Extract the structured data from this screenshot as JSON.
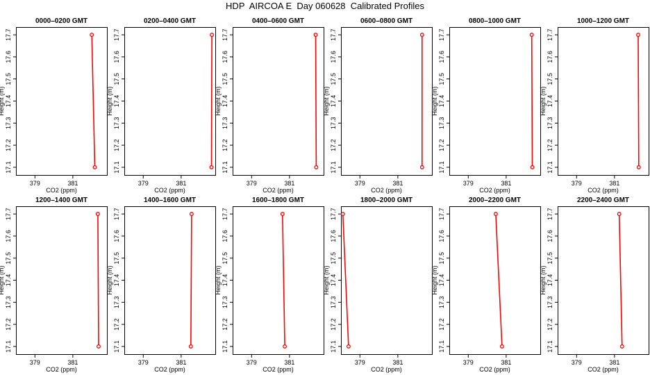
{
  "page": {
    "title": "HDP  AIRCOA E  Day 060628  Calibrated Profiles"
  },
  "colors": {
    "profile": "#ff0000",
    "axis": "#000000",
    "background": "#ffffff"
  },
  "chart_data": [
    {
      "type": "line",
      "title": "0000–0200 GMT",
      "xlabel": "CO2 (ppm)",
      "ylabel": "Height (m)",
      "xlim": [
        378.0,
        382.8
      ],
      "ylim": [
        17.065,
        17.735
      ],
      "x_ticks": [
        "379",
        "381"
      ],
      "y_ticks": [
        "17.1",
        "17.2",
        "17.3",
        "17.4",
        "17.5",
        "17.6",
        "17.7"
      ],
      "x": [
        382.0,
        382.16
      ],
      "y": [
        17.7,
        17.1
      ]
    },
    {
      "type": "line",
      "title": "0200–0400 GMT",
      "xlabel": "CO2 (ppm)",
      "ylabel": "Height (m)",
      "xlim": [
        378.0,
        382.8
      ],
      "ylim": [
        17.065,
        17.735
      ],
      "x_ticks": [
        "379",
        "381"
      ],
      "y_ticks": [
        "17.1",
        "17.2",
        "17.3",
        "17.4",
        "17.5",
        "17.6",
        "17.7"
      ],
      "x": [
        382.62,
        382.6
      ],
      "y": [
        17.7,
        17.1
      ]
    },
    {
      "type": "line",
      "title": "0400–0600 GMT",
      "xlabel": "CO2 (ppm)",
      "ylabel": "Height (m)",
      "xlim": [
        378.0,
        382.8
      ],
      "ylim": [
        17.065,
        17.735
      ],
      "x_ticks": [
        "379",
        "381"
      ],
      "y_ticks": [
        "17.1",
        "17.2",
        "17.3",
        "17.4",
        "17.5",
        "17.6",
        "17.7"
      ],
      "x": [
        382.38,
        382.41
      ],
      "y": [
        17.7,
        17.1
      ]
    },
    {
      "type": "line",
      "title": "0600–0800 GMT",
      "xlabel": "CO2 (ppm)",
      "ylabel": "Height (m)",
      "xlim": [
        378.0,
        382.8
      ],
      "ylim": [
        17.065,
        17.735
      ],
      "x_ticks": [
        "379",
        "381"
      ],
      "y_ticks": [
        "17.1",
        "17.2",
        "17.3",
        "17.4",
        "17.5",
        "17.6",
        "17.7"
      ],
      "x": [
        382.28,
        382.28
      ],
      "y": [
        17.7,
        17.1
      ]
    },
    {
      "type": "line",
      "title": "0800–1000 GMT",
      "xlabel": "CO2 (ppm)",
      "ylabel": "Height (m)",
      "xlim": [
        378.0,
        382.8
      ],
      "ylim": [
        17.065,
        17.735
      ],
      "x_ticks": [
        "379",
        "381"
      ],
      "y_ticks": [
        "17.1",
        "17.2",
        "17.3",
        "17.4",
        "17.5",
        "17.6",
        "17.7"
      ],
      "x": [
        382.35,
        382.38
      ],
      "y": [
        17.7,
        17.1
      ]
    },
    {
      "type": "line",
      "title": "1000–1200 GMT",
      "xlabel": "CO2 (ppm)",
      "ylabel": "Height (m)",
      "xlim": [
        378.0,
        382.8
      ],
      "ylim": [
        17.065,
        17.735
      ],
      "x_ticks": [
        "379",
        "381"
      ],
      "y_ticks": [
        "17.1",
        "17.2",
        "17.3",
        "17.4",
        "17.5",
        "17.6",
        "17.7"
      ],
      "x": [
        382.25,
        382.28
      ],
      "y": [
        17.7,
        17.1
      ]
    },
    {
      "type": "line",
      "title": "1200–1400 GMT",
      "xlabel": "CO2 (ppm)",
      "ylabel": "Height (m)",
      "xlim": [
        378.0,
        382.8
      ],
      "ylim": [
        17.065,
        17.735
      ],
      "x_ticks": [
        "379",
        "381"
      ],
      "y_ticks": [
        "17.1",
        "17.2",
        "17.3",
        "17.4",
        "17.5",
        "17.6",
        "17.7"
      ],
      "x": [
        382.32,
        382.36
      ],
      "y": [
        17.7,
        17.1
      ]
    },
    {
      "type": "line",
      "title": "1400–1600 GMT",
      "xlabel": "CO2 (ppm)",
      "ylabel": "Height (m)",
      "xlim": [
        378.0,
        382.8
      ],
      "ylim": [
        17.065,
        17.735
      ],
      "x_ticks": [
        "379",
        "381"
      ],
      "y_ticks": [
        "17.1",
        "17.2",
        "17.3",
        "17.4",
        "17.5",
        "17.6",
        "17.7"
      ],
      "x": [
        381.55,
        381.51
      ],
      "y": [
        17.7,
        17.1
      ]
    },
    {
      "type": "line",
      "title": "1600–1800 GMT",
      "xlabel": "CO2 (ppm)",
      "ylabel": "Height (m)",
      "xlim": [
        378.0,
        382.8
      ],
      "ylim": [
        17.065,
        17.735
      ],
      "x_ticks": [
        "379",
        "381"
      ],
      "y_ticks": [
        "17.1",
        "17.2",
        "17.3",
        "17.4",
        "17.5",
        "17.6",
        "17.7"
      ],
      "x": [
        380.63,
        380.75
      ],
      "y": [
        17.7,
        17.1
      ]
    },
    {
      "type": "line",
      "title": "1800–2000 GMT",
      "xlabel": "CO2 (ppm)",
      "ylabel": "Height (m)",
      "xlim": [
        378.0,
        382.8
      ],
      "ylim": [
        17.065,
        17.735
      ],
      "x_ticks": [
        "379",
        "381"
      ],
      "y_ticks": [
        "17.1",
        "17.2",
        "17.3",
        "17.4",
        "17.5",
        "17.6",
        "17.7"
      ],
      "x": [
        378.1,
        378.4
      ],
      "y": [
        17.7,
        17.1
      ]
    },
    {
      "type": "line",
      "title": "2000–2200 GMT",
      "xlabel": "CO2 (ppm)",
      "ylabel": "Height (m)",
      "xlim": [
        378.0,
        382.8
      ],
      "ylim": [
        17.065,
        17.735
      ],
      "x_ticks": [
        "379",
        "381"
      ],
      "y_ticks": [
        "17.1",
        "17.2",
        "17.3",
        "17.4",
        "17.5",
        "17.6",
        "17.7"
      ],
      "x": [
        380.45,
        380.78
      ],
      "y": [
        17.7,
        17.1
      ]
    },
    {
      "type": "line",
      "title": "2200–2400 GMT",
      "xlabel": "CO2 (ppm)",
      "ylabel": "Height (m)",
      "xlim": [
        378.0,
        382.8
      ],
      "ylim": [
        17.065,
        17.735
      ],
      "x_ticks": [
        "379",
        "381"
      ],
      "y_ticks": [
        "17.1",
        "17.2",
        "17.3",
        "17.4",
        "17.5",
        "17.6",
        "17.7"
      ],
      "x": [
        381.25,
        381.4
      ],
      "y": [
        17.7,
        17.1
      ]
    }
  ]
}
